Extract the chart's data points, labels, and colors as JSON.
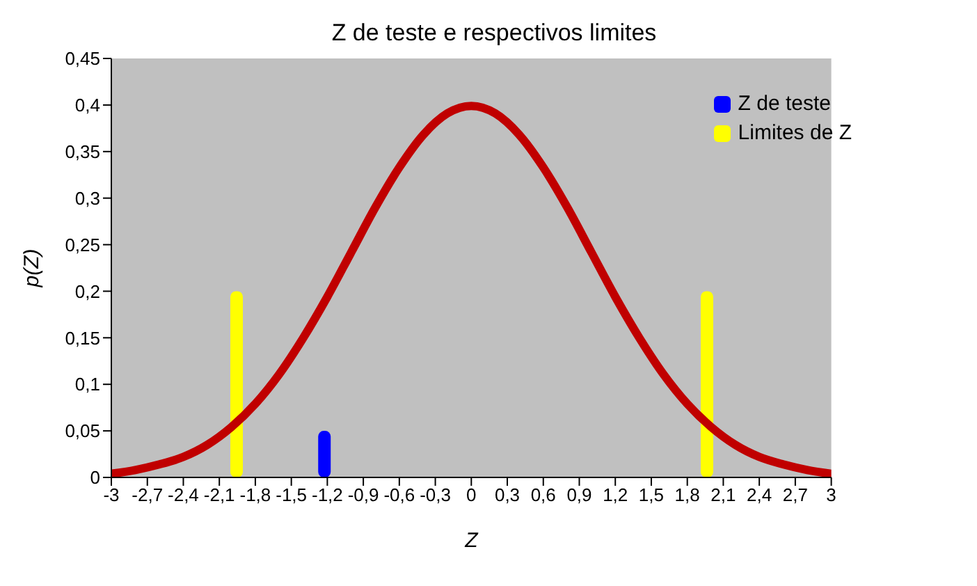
{
  "chart_data": {
    "type": "line",
    "title": "Z de teste e respectivos limites",
    "xlabel": "Z",
    "ylabel": "p(Z)",
    "legend": "top right",
    "marker": "none",
    "line_style": "solid",
    "xlim": [
      -3,
      3
    ],
    "xticks": [
      {
        "value": -3,
        "label": "-3"
      },
      {
        "value": -2.7,
        "label": "-2,7"
      },
      {
        "value": -2.4,
        "label": "-2,4"
      },
      {
        "value": -2.1,
        "label": "-2,1"
      },
      {
        "value": -1.8,
        "label": "-1,8"
      },
      {
        "value": -1.5,
        "label": "-1,5"
      },
      {
        "value": -1.2,
        "label": "-1,2"
      },
      {
        "value": -0.9,
        "label": "-0,9"
      },
      {
        "value": -0.6,
        "label": "-0,6"
      },
      {
        "value": -0.3,
        "label": "-0,3"
      },
      {
        "value": 0,
        "label": "0"
      },
      {
        "value": 0.3,
        "label": "0,3"
      },
      {
        "value": 0.6,
        "label": "0,6"
      },
      {
        "value": 0.9,
        "label": "0,9"
      },
      {
        "value": 1.2,
        "label": "1,2"
      },
      {
        "value": 1.5,
        "label": "1,5"
      },
      {
        "value": 1.8,
        "label": "1,8"
      },
      {
        "value": 2.1,
        "label": "2,1"
      },
      {
        "value": 2.4,
        "label": "2,4"
      },
      {
        "value": 2.7,
        "label": "2,7"
      },
      {
        "value": 3,
        "label": "3"
      }
    ],
    "ylim": [
      0,
      0.45
    ],
    "yticks": [
      {
        "value": 0,
        "label": "0"
      },
      {
        "value": 0.05,
        "label": "0,05"
      },
      {
        "value": 0.1,
        "label": "0,1"
      },
      {
        "value": 0.15,
        "label": "0,15"
      },
      {
        "value": 0.2,
        "label": "0,2"
      },
      {
        "value": 0.25,
        "label": "0,25"
      },
      {
        "value": 0.3,
        "label": "0,3"
      },
      {
        "value": 0.35,
        "label": "0,35"
      },
      {
        "value": 0.4,
        "label": "0,4"
      },
      {
        "value": 0.45,
        "label": "0,45"
      }
    ],
    "series": [
      {
        "color": "#c00000",
        "x": [
          -3,
          -2.8,
          -2.6,
          -2.4,
          -2.2,
          -2,
          -1.8,
          -1.6,
          -1.4,
          -1.2,
          -1,
          -0.8,
          -0.6,
          -0.4,
          -0.2,
          0,
          0.2,
          0.4,
          0.6,
          0.8,
          1,
          1.2,
          1.4,
          1.6,
          1.8,
          2,
          2.2,
          2.4,
          2.6,
          2.8,
          3
        ],
        "values": [
          0.004,
          0.008,
          0.014,
          0.022,
          0.035,
          0.054,
          0.079,
          0.111,
          0.15,
          0.194,
          0.242,
          0.29,
          0.333,
          0.368,
          0.391,
          0.399,
          0.391,
          0.368,
          0.333,
          0.29,
          0.242,
          0.194,
          0.15,
          0.111,
          0.079,
          0.054,
          0.035,
          0.022,
          0.014,
          0.008,
          0.004
        ]
      },
      {
        "type": "bar",
        "name": "Z de teste",
        "color": "#0000ff",
        "x": [
          -1.22
        ],
        "values": [
          0.05
        ]
      },
      {
        "type": "bar",
        "name": "Limites de Z",
        "color": "#ffff00",
        "x": [
          -1.96,
          1.96
        ],
        "values": [
          0.2,
          0.2
        ]
      }
    ]
  }
}
